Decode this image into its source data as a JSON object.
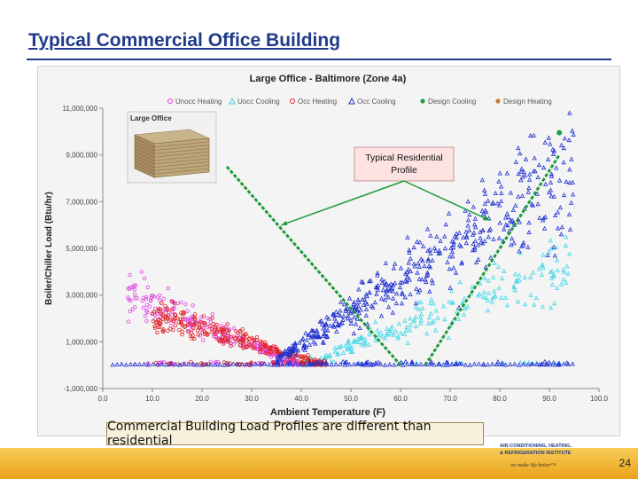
{
  "slide": {
    "title": "Typical Commercial Office Building",
    "caption": "Commercial Building Load Profiles are different than residential",
    "page_number": "24"
  },
  "logo": {
    "line1": "AIR-CONDITIONING, HEATING,",
    "line2": "& REFRIGERATION INSTITUTE",
    "tagline": "we make life better™"
  },
  "chart_data": {
    "type": "scatter",
    "title": "Large Office - Baltimore (Zone 4a)",
    "xlabel": "Ambient Temperature (F)",
    "ylabel": "Boiler/Chiller Load (Btu/hr)",
    "xlim": [
      0,
      100
    ],
    "ylim": [
      -1000000,
      11000000
    ],
    "grid": false,
    "legend_position": "top",
    "x_ticks": [
      "0.0",
      "10.0",
      "20.0",
      "30.0",
      "40.0",
      "50.0",
      "60.0",
      "70.0",
      "80.0",
      "90.0",
      "100.0"
    ],
    "y_ticks": [
      "-1,000,000",
      "1,000,000",
      "3,000,000",
      "5,000,000",
      "7,000,000",
      "9,000,000",
      "11,000,000"
    ],
    "series": [
      {
        "name": "Unocc Heating",
        "color": "#e040e0",
        "marker": "circle-open",
        "cluster": {
          "x_range": [
            5,
            40
          ],
          "y_at_x_start": 3000000,
          "y_at_x_end": 0
        }
      },
      {
        "name": "Uocc Cooling",
        "color": "#40d8e8",
        "marker": "triangle-open",
        "cluster": {
          "x_range": [
            40,
            95
          ],
          "y_at_x_start": 0,
          "y_at_x_end": 4500000
        }
      },
      {
        "name": "Occ Heating",
        "color": "#e02020",
        "marker": "circle-open",
        "cluster": {
          "x_range": [
            10,
            45
          ],
          "y_at_x_start": 2200000,
          "y_at_x_end": 0
        }
      },
      {
        "name": "Occ Cooling",
        "color": "#1f2fd0",
        "marker": "triangle-open",
        "cluster": {
          "x_range": [
            35,
            95
          ],
          "y_at_x_start": 200000,
          "y_at_x_end": 8500000
        }
      },
      {
        "name": "Design Cooling",
        "color": "#20a040",
        "marker": "dot",
        "points": [
          {
            "x": 92,
            "y": 9950000
          }
        ]
      },
      {
        "name": "Design Heating",
        "color": "#c87830",
        "marker": "dot",
        "points": [
          {
            "x": 10,
            "y": 8000000
          }
        ]
      }
    ],
    "annotations": {
      "callout_text": "Typical Residential Profile",
      "thumbnail_label": "Large Office",
      "residential_profile_lines": [
        {
          "from": {
            "x": 25,
            "y": 8500000
          },
          "to": {
            "x": 60,
            "y": 0
          }
        },
        {
          "from": {
            "x": 65,
            "y": 0
          },
          "to": {
            "x": 92,
            "y": 9000000
          }
        }
      ],
      "callout_arrows": [
        {
          "to": {
            "x": 36,
            "y": 6000000
          }
        },
        {
          "to": {
            "x": 78,
            "y": 6200000
          }
        }
      ]
    }
  }
}
